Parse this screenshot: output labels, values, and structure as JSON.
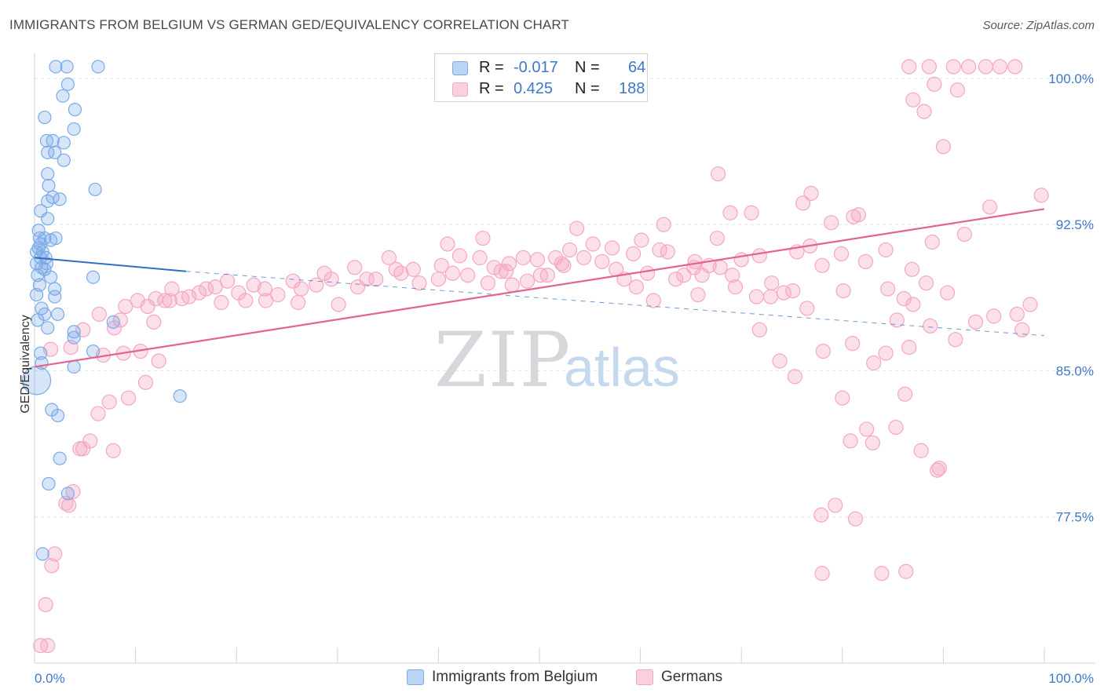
{
  "title": "IMMIGRANTS FROM BELGIUM VS GERMAN GED/EQUIVALENCY CORRELATION CHART",
  "source": "Source: ZipAtlas.com",
  "watermark": {
    "zip": "ZIP",
    "atlas": "atlas"
  },
  "legend": {
    "rows": [
      {
        "r_label": "R =",
        "r_value": "-0.017",
        "n_label": "N =",
        "n_value": "64",
        "color": "#7aaae8"
      },
      {
        "r_label": "R =",
        "r_value": "0.425",
        "n_label": "N =",
        "n_value": "188",
        "color": "#f4a7c0"
      }
    ]
  },
  "bottom_legend": [
    {
      "label": "Immigrants from Belgium",
      "color": "#7aaae8"
    },
    {
      "label": "Germans",
      "color": "#f4a7c0"
    }
  ],
  "chart_data": {
    "type": "scatter",
    "xlabel": "",
    "ylabel": "GED/Equivalency",
    "xlim": [
      0,
      100
    ],
    "ylim": [
      70,
      100.8
    ],
    "x_tick_labels": [
      "0.0%",
      "100.0%"
    ],
    "y_ticks": [
      {
        "value": 100.0,
        "label": "100.0%"
      },
      {
        "value": 92.5,
        "label": "92.5%"
      },
      {
        "value": 85.0,
        "label": "85.0%"
      },
      {
        "value": 77.5,
        "label": "77.5%"
      }
    ],
    "grid": "horizontal dashed",
    "legend_position": "top-center",
    "colors": {
      "belgium": "#7aaae8",
      "germans": "#f4a7c0",
      "belgium_line": "#2f6fc8",
      "germans_line": "#e4648e"
    },
    "series": [
      {
        "name": "Immigrants from Belgium",
        "trend": {
          "x0": 0,
          "y0": 90.8,
          "x1": 15,
          "y1": 90.1,
          "dash_x1": 100,
          "dash_y1": 86.8
        },
        "points": [
          [
            2.1,
            100.6
          ],
          [
            3.2,
            100.6
          ],
          [
            6.3,
            100.6
          ],
          [
            3.3,
            99.7
          ],
          [
            2.8,
            99.1
          ],
          [
            4.0,
            98.4
          ],
          [
            1.0,
            98.0
          ],
          [
            3.9,
            97.4
          ],
          [
            1.2,
            96.8
          ],
          [
            1.8,
            96.8
          ],
          [
            2.9,
            96.7
          ],
          [
            1.3,
            96.2
          ],
          [
            2.0,
            96.2
          ],
          [
            2.9,
            95.8
          ],
          [
            1.3,
            95.1
          ],
          [
            1.4,
            94.5
          ],
          [
            6.0,
            94.3
          ],
          [
            1.8,
            93.9
          ],
          [
            1.3,
            93.7
          ],
          [
            2.5,
            93.8
          ],
          [
            0.6,
            93.2
          ],
          [
            1.3,
            92.8
          ],
          [
            0.4,
            92.2
          ],
          [
            0.5,
            91.8
          ],
          [
            1.0,
            91.8
          ],
          [
            1.6,
            91.7
          ],
          [
            2.1,
            91.8
          ],
          [
            0.6,
            91.5
          ],
          [
            0.2,
            91.1
          ],
          [
            0.8,
            91.1
          ],
          [
            0.6,
            90.8
          ],
          [
            1.1,
            90.8
          ],
          [
            0.2,
            90.5
          ],
          [
            0.7,
            90.3
          ],
          [
            1.0,
            90.2
          ],
          [
            0.3,
            89.9
          ],
          [
            1.6,
            89.8
          ],
          [
            5.8,
            89.8
          ],
          [
            2.0,
            89.2
          ],
          [
            0.2,
            88.9
          ],
          [
            2.0,
            88.8
          ],
          [
            0.7,
            88.2
          ],
          [
            1.0,
            87.9
          ],
          [
            2.3,
            87.9
          ],
          [
            0.3,
            87.6
          ],
          [
            7.8,
            87.5
          ],
          [
            1.3,
            87.2
          ],
          [
            3.9,
            87.0
          ],
          [
            3.9,
            86.7
          ],
          [
            5.8,
            86.0
          ],
          [
            0.6,
            85.9
          ],
          [
            0.7,
            85.4
          ],
          [
            3.9,
            85.2
          ],
          [
            0.2,
            84.5
          ],
          [
            14.4,
            83.7
          ],
          [
            1.7,
            83.0
          ],
          [
            2.3,
            82.7
          ],
          [
            2.5,
            80.5
          ],
          [
            1.4,
            79.2
          ],
          [
            3.3,
            78.7
          ],
          [
            0.8,
            75.6
          ],
          [
            0.4,
            91.3
          ],
          [
            1.2,
            90.5
          ],
          [
            0.5,
            89.4
          ]
        ]
      },
      {
        "name": "Germans",
        "trend": {
          "x0": 0,
          "y0": 85.2,
          "x1": 100,
          "y1": 93.3
        },
        "points": [
          [
            86.6,
            100.6
          ],
          [
            88.6,
            100.6
          ],
          [
            91.0,
            100.6
          ],
          [
            92.5,
            100.6
          ],
          [
            94.2,
            100.6
          ],
          [
            95.6,
            100.6
          ],
          [
            97.1,
            100.6
          ],
          [
            89.1,
            99.7
          ],
          [
            91.4,
            99.4
          ],
          [
            87.0,
            98.9
          ],
          [
            88.1,
            98.3
          ],
          [
            90.0,
            96.5
          ],
          [
            67.7,
            95.1
          ],
          [
            99.7,
            94.0
          ],
          [
            76.9,
            94.1
          ],
          [
            76.1,
            93.6
          ],
          [
            94.6,
            93.4
          ],
          [
            71.0,
            93.1
          ],
          [
            81.6,
            93.0
          ],
          [
            81.1,
            92.9
          ],
          [
            68.9,
            93.1
          ],
          [
            62.3,
            92.5
          ],
          [
            78.9,
            92.6
          ],
          [
            53.7,
            92.3
          ],
          [
            60.1,
            91.7
          ],
          [
            67.6,
            91.8
          ],
          [
            44.4,
            91.8
          ],
          [
            40.9,
            91.5
          ],
          [
            57.2,
            91.3
          ],
          [
            61.9,
            91.2
          ],
          [
            59.3,
            91.0
          ],
          [
            75.5,
            91.1
          ],
          [
            76.8,
            91.4
          ],
          [
            42.1,
            90.9
          ],
          [
            44.1,
            90.8
          ],
          [
            48.4,
            90.8
          ],
          [
            54.4,
            90.8
          ],
          [
            56.2,
            90.6
          ],
          [
            51.6,
            90.8
          ],
          [
            47.0,
            90.5
          ],
          [
            49.8,
            90.7
          ],
          [
            52.2,
            90.5
          ],
          [
            65.4,
            90.6
          ],
          [
            66.8,
            90.4
          ],
          [
            45.5,
            90.3
          ],
          [
            41.4,
            90.0
          ],
          [
            40.3,
            90.4
          ],
          [
            37.5,
            90.2
          ],
          [
            36.3,
            90.0
          ],
          [
            46.7,
            90.1
          ],
          [
            50.1,
            89.9
          ],
          [
            63.5,
            89.7
          ],
          [
            65.3,
            90.3
          ],
          [
            69.1,
            89.9
          ],
          [
            35.1,
            90.8
          ],
          [
            35.8,
            90.2
          ],
          [
            33.8,
            89.7
          ],
          [
            32.9,
            89.7
          ],
          [
            31.7,
            90.3
          ],
          [
            29.4,
            89.7
          ],
          [
            28.7,
            90.0
          ],
          [
            27.9,
            89.4
          ],
          [
            26.4,
            89.2
          ],
          [
            25.6,
            89.6
          ],
          [
            24.1,
            88.9
          ],
          [
            22.8,
            89.2
          ],
          [
            21.7,
            89.4
          ],
          [
            20.2,
            89.0
          ],
          [
            19.1,
            89.6
          ],
          [
            17.9,
            89.3
          ],
          [
            17.0,
            89.2
          ],
          [
            16.3,
            89.0
          ],
          [
            15.3,
            88.8
          ],
          [
            14.6,
            88.7
          ],
          [
            13.6,
            89.2
          ],
          [
            12.9,
            88.6
          ],
          [
            12.0,
            88.7
          ],
          [
            11.2,
            88.3
          ],
          [
            10.2,
            88.6
          ],
          [
            9.0,
            88.3
          ],
          [
            8.5,
            87.6
          ],
          [
            6.4,
            87.9
          ],
          [
            7.9,
            87.2
          ],
          [
            4.8,
            87.1
          ],
          [
            3.6,
            86.2
          ],
          [
            1.6,
            86.1
          ],
          [
            6.8,
            85.8
          ],
          [
            8.8,
            85.9
          ],
          [
            10.5,
            86.0
          ],
          [
            12.3,
            85.5
          ],
          [
            11.0,
            84.4
          ],
          [
            9.3,
            83.6
          ],
          [
            7.4,
            83.4
          ],
          [
            6.3,
            82.8
          ],
          [
            4.8,
            81.0
          ],
          [
            5.5,
            81.4
          ],
          [
            4.5,
            81.0
          ],
          [
            7.8,
            80.9
          ],
          [
            3.8,
            78.8
          ],
          [
            3.1,
            78.2
          ],
          [
            3.4,
            78.1
          ],
          [
            2.0,
            75.6
          ],
          [
            1.7,
            75.0
          ],
          [
            1.1,
            73.0
          ],
          [
            0.6,
            70.9
          ],
          [
            1.3,
            70.9
          ],
          [
            11.8,
            87.5
          ],
          [
            13.4,
            88.6
          ],
          [
            18.5,
            88.5
          ],
          [
            20.9,
            88.6
          ],
          [
            22.9,
            88.6
          ],
          [
            26.1,
            88.5
          ],
          [
            30.1,
            88.4
          ],
          [
            32.0,
            89.3
          ],
          [
            38.1,
            89.5
          ],
          [
            40.0,
            89.7
          ],
          [
            42.9,
            89.9
          ],
          [
            44.9,
            89.5
          ],
          [
            46.2,
            90.1
          ],
          [
            47.3,
            89.4
          ],
          [
            48.8,
            89.6
          ],
          [
            50.8,
            89.9
          ],
          [
            52.4,
            90.4
          ],
          [
            53.0,
            91.2
          ],
          [
            55.3,
            91.5
          ],
          [
            57.6,
            90.2
          ],
          [
            58.4,
            89.7
          ],
          [
            60.7,
            90.0
          ],
          [
            62.7,
            91.1
          ],
          [
            64.3,
            89.9
          ],
          [
            66.1,
            89.9
          ],
          [
            67.9,
            90.3
          ],
          [
            70.0,
            90.7
          ],
          [
            71.8,
            90.9
          ],
          [
            73.0,
            89.5
          ],
          [
            74.2,
            89.0
          ],
          [
            75.1,
            89.1
          ],
          [
            78.0,
            90.4
          ],
          [
            79.9,
            91.0
          ],
          [
            82.3,
            90.6
          ],
          [
            84.3,
            91.2
          ],
          [
            86.9,
            90.2
          ],
          [
            88.9,
            91.6
          ],
          [
            92.1,
            92.0
          ],
          [
            69.4,
            89.3
          ],
          [
            71.5,
            88.8
          ],
          [
            72.9,
            88.8
          ],
          [
            76.5,
            88.2
          ],
          [
            80.1,
            89.1
          ],
          [
            84.5,
            89.2
          ],
          [
            86.1,
            88.7
          ],
          [
            87.0,
            88.4
          ],
          [
            88.3,
            89.5
          ],
          [
            90.4,
            89.0
          ],
          [
            71.8,
            87.1
          ],
          [
            78.1,
            86.0
          ],
          [
            81.0,
            86.4
          ],
          [
            84.3,
            85.9
          ],
          [
            86.6,
            86.2
          ],
          [
            88.7,
            87.3
          ],
          [
            91.2,
            86.6
          ],
          [
            93.2,
            87.5
          ],
          [
            95.0,
            87.8
          ],
          [
            97.3,
            87.9
          ],
          [
            73.8,
            85.5
          ],
          [
            75.3,
            84.7
          ],
          [
            83.1,
            85.4
          ],
          [
            86.2,
            83.8
          ],
          [
            80.0,
            83.6
          ],
          [
            82.4,
            82.0
          ],
          [
            83.0,
            81.3
          ],
          [
            85.3,
            82.1
          ],
          [
            87.8,
            80.9
          ],
          [
            80.8,
            81.4
          ],
          [
            89.6,
            80.0
          ],
          [
            77.9,
            77.6
          ],
          [
            79.3,
            78.1
          ],
          [
            81.3,
            77.4
          ],
          [
            89.4,
            79.9
          ],
          [
            78.0,
            74.6
          ],
          [
            83.9,
            74.6
          ],
          [
            86.3,
            74.7
          ],
          [
            97.8,
            87.1
          ],
          [
            98.6,
            88.4
          ],
          [
            85.4,
            87.6
          ],
          [
            65.7,
            88.9
          ],
          [
            59.6,
            89.3
          ],
          [
            61.3,
            88.6
          ]
        ]
      }
    ]
  }
}
